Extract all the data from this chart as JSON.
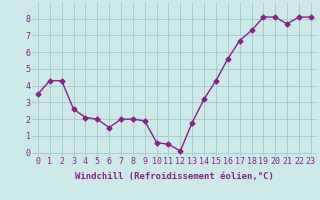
{
  "x": [
    0,
    1,
    2,
    3,
    4,
    5,
    6,
    7,
    8,
    9,
    10,
    11,
    12,
    13,
    14,
    15,
    16,
    17,
    18,
    19,
    20,
    21,
    22,
    23
  ],
  "y": [
    3.5,
    4.3,
    4.3,
    2.6,
    2.1,
    2.0,
    1.5,
    2.0,
    2.0,
    1.9,
    0.6,
    0.5,
    0.1,
    1.8,
    3.2,
    4.3,
    5.6,
    6.7,
    7.3,
    8.1,
    8.1,
    7.7,
    8.1,
    8.1
  ],
  "line_color": "#882288",
  "marker": "D",
  "marker_size": 2.5,
  "line_width": 1.0,
  "bg_color": "#cce8e8",
  "grid_color": "#aacccc",
  "xlabel": "Windchill (Refroidissement éolien,°C)",
  "xlabel_fontsize": 6.5,
  "xlabel_color": "#882288",
  "tick_color": "#882288",
  "tick_fontsize": 6.0,
  "xlim": [
    -0.5,
    23.5
  ],
  "ylim": [
    -0.2,
    9.0
  ],
  "yticks": [
    0,
    1,
    2,
    3,
    4,
    5,
    6,
    7,
    8
  ],
  "xticks": [
    0,
    1,
    2,
    3,
    4,
    5,
    6,
    7,
    8,
    9,
    10,
    11,
    12,
    13,
    14,
    15,
    16,
    17,
    18,
    19,
    20,
    21,
    22,
    23
  ]
}
